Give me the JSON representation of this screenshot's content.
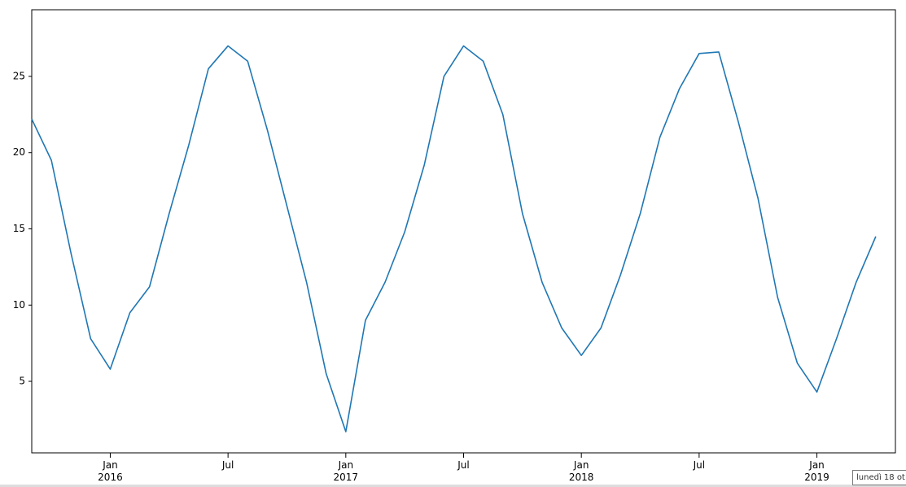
{
  "chart_data": {
    "type": "line",
    "x": [
      "2015-09",
      "2015-10",
      "2015-11",
      "2015-12",
      "2016-01",
      "2016-02",
      "2016-03",
      "2016-04",
      "2016-05",
      "2016-06",
      "2016-07",
      "2016-08",
      "2016-09",
      "2016-10",
      "2016-11",
      "2016-12",
      "2017-01",
      "2017-02",
      "2017-03",
      "2017-04",
      "2017-05",
      "2017-06",
      "2017-07",
      "2017-08",
      "2017-09",
      "2017-10",
      "2017-11",
      "2017-12",
      "2018-01",
      "2018-02",
      "2018-03",
      "2018-04",
      "2018-05",
      "2018-06",
      "2018-07",
      "2018-08",
      "2018-09",
      "2018-10",
      "2018-11",
      "2018-12",
      "2019-01",
      "2019-02",
      "2019-03",
      "2019-04"
    ],
    "series": [
      {
        "color": "#1f77b4",
        "values": [
          22.2,
          19.5,
          13.4,
          7.8,
          5.8,
          9.5,
          11.2,
          16,
          20.5,
          25.5,
          27,
          26,
          21.5,
          16.5,
          11.5,
          5.5,
          1.7,
          9,
          11.5,
          14.8,
          19.2,
          25,
          27,
          26,
          22.5,
          16,
          11.5,
          8.5,
          6.7,
          8.5,
          12,
          16,
          21,
          24.2,
          26.5,
          26.6,
          22,
          17,
          10.5,
          6.2,
          4.3,
          7.8,
          11.5,
          14.5
        ]
      }
    ],
    "xlim": [
      "2015-09",
      "2019-05"
    ],
    "xticks": [
      {
        "value": "2016-01",
        "label": "Jan\n2016"
      },
      {
        "value": "2016-07",
        "label": "Jul"
      },
      {
        "value": "2017-01",
        "label": "Jan\n2017"
      },
      {
        "value": "2017-07",
        "label": "Jul"
      },
      {
        "value": "2018-01",
        "label": "Jan\n2018"
      },
      {
        "value": "2018-07",
        "label": "Jul"
      },
      {
        "value": "2019-01",
        "label": "Jan\n2019"
      }
    ],
    "ylim": [
      0.31,
      29.37
    ],
    "yticks": [
      5,
      10,
      15,
      20,
      25
    ],
    "grid": false
  },
  "tooltip": "lunedì 18 ot"
}
